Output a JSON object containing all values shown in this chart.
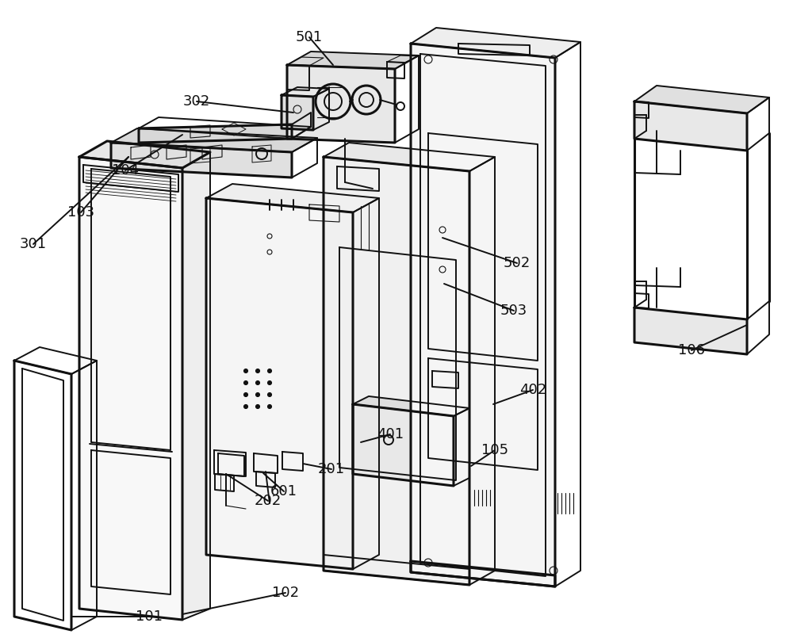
{
  "bg": "#ffffff",
  "lc": "#111111",
  "lw": 1.4,
  "lw2": 2.2,
  "fs": 13,
  "labels": [
    [
      "501",
      390,
      47
    ],
    [
      "302",
      248,
      128
    ],
    [
      "104",
      158,
      215
    ],
    [
      "103",
      102,
      268
    ],
    [
      "301",
      42,
      308
    ],
    [
      "202",
      338,
      632
    ],
    [
      "601",
      358,
      620
    ],
    [
      "201",
      418,
      592
    ],
    [
      "102",
      360,
      748
    ],
    [
      "101",
      188,
      778
    ],
    [
      "401",
      492,
      548
    ],
    [
      "402",
      672,
      492
    ],
    [
      "105",
      624,
      568
    ],
    [
      "502",
      652,
      332
    ],
    [
      "503",
      648,
      392
    ],
    [
      "106",
      872,
      442
    ]
  ]
}
